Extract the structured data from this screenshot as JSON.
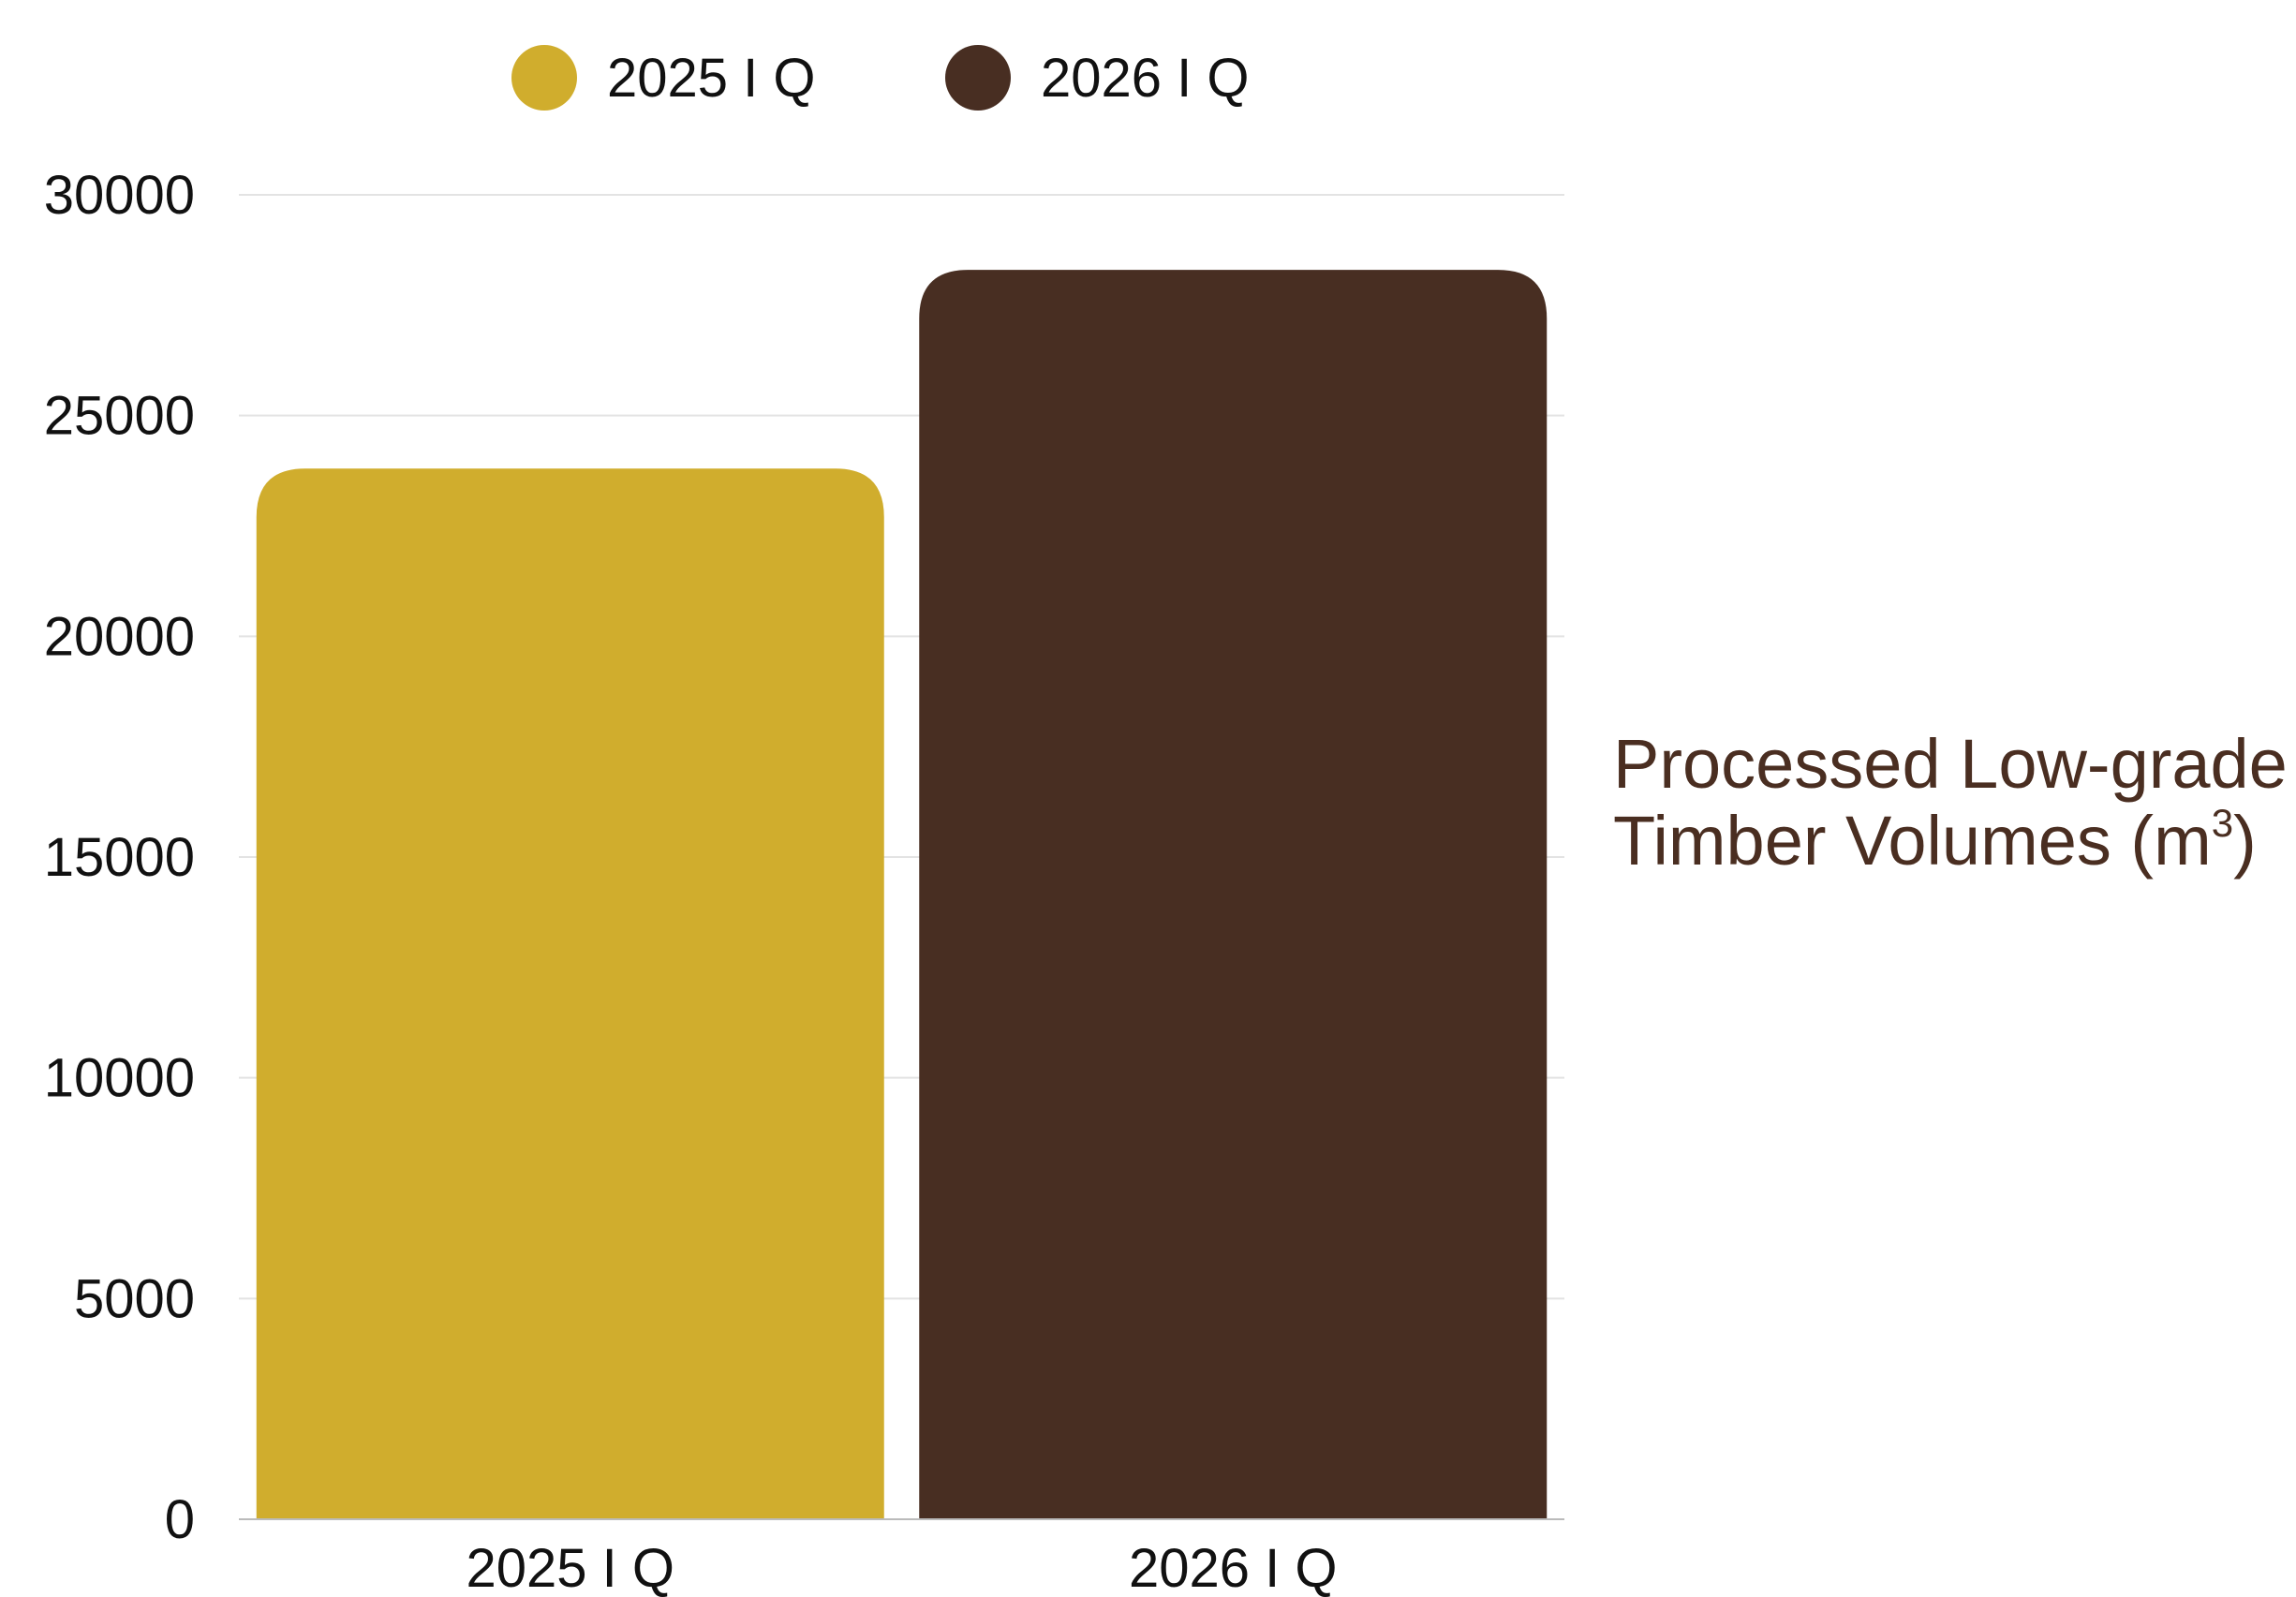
{
  "chart_data": {
    "type": "bar",
    "categories": [
      "2025 I Q",
      "2026 I Q"
    ],
    "series": [
      {
        "name": "2025 I Q",
        "values": [
          23800,
          null
        ],
        "color": "#d0ad2d"
      },
      {
        "name": "2026 I Q",
        "values": [
          null,
          28300
        ],
        "color": "#482e22"
      }
    ],
    "values": [
      23800,
      28300
    ],
    "colors": [
      "#d0ad2d",
      "#482e22"
    ],
    "yticks": [
      0,
      5000,
      10000,
      15000,
      20000,
      25000,
      30000
    ],
    "ylim": [
      0,
      30000
    ],
    "grid": true,
    "legend": "top",
    "side_label": {
      "line1": "Processed Low-grade",
      "line2_prefix": "Timber Volumes (m",
      "line2_sup": "3",
      "line2_suffix": ")",
      "color": "#4a2e21"
    }
  }
}
